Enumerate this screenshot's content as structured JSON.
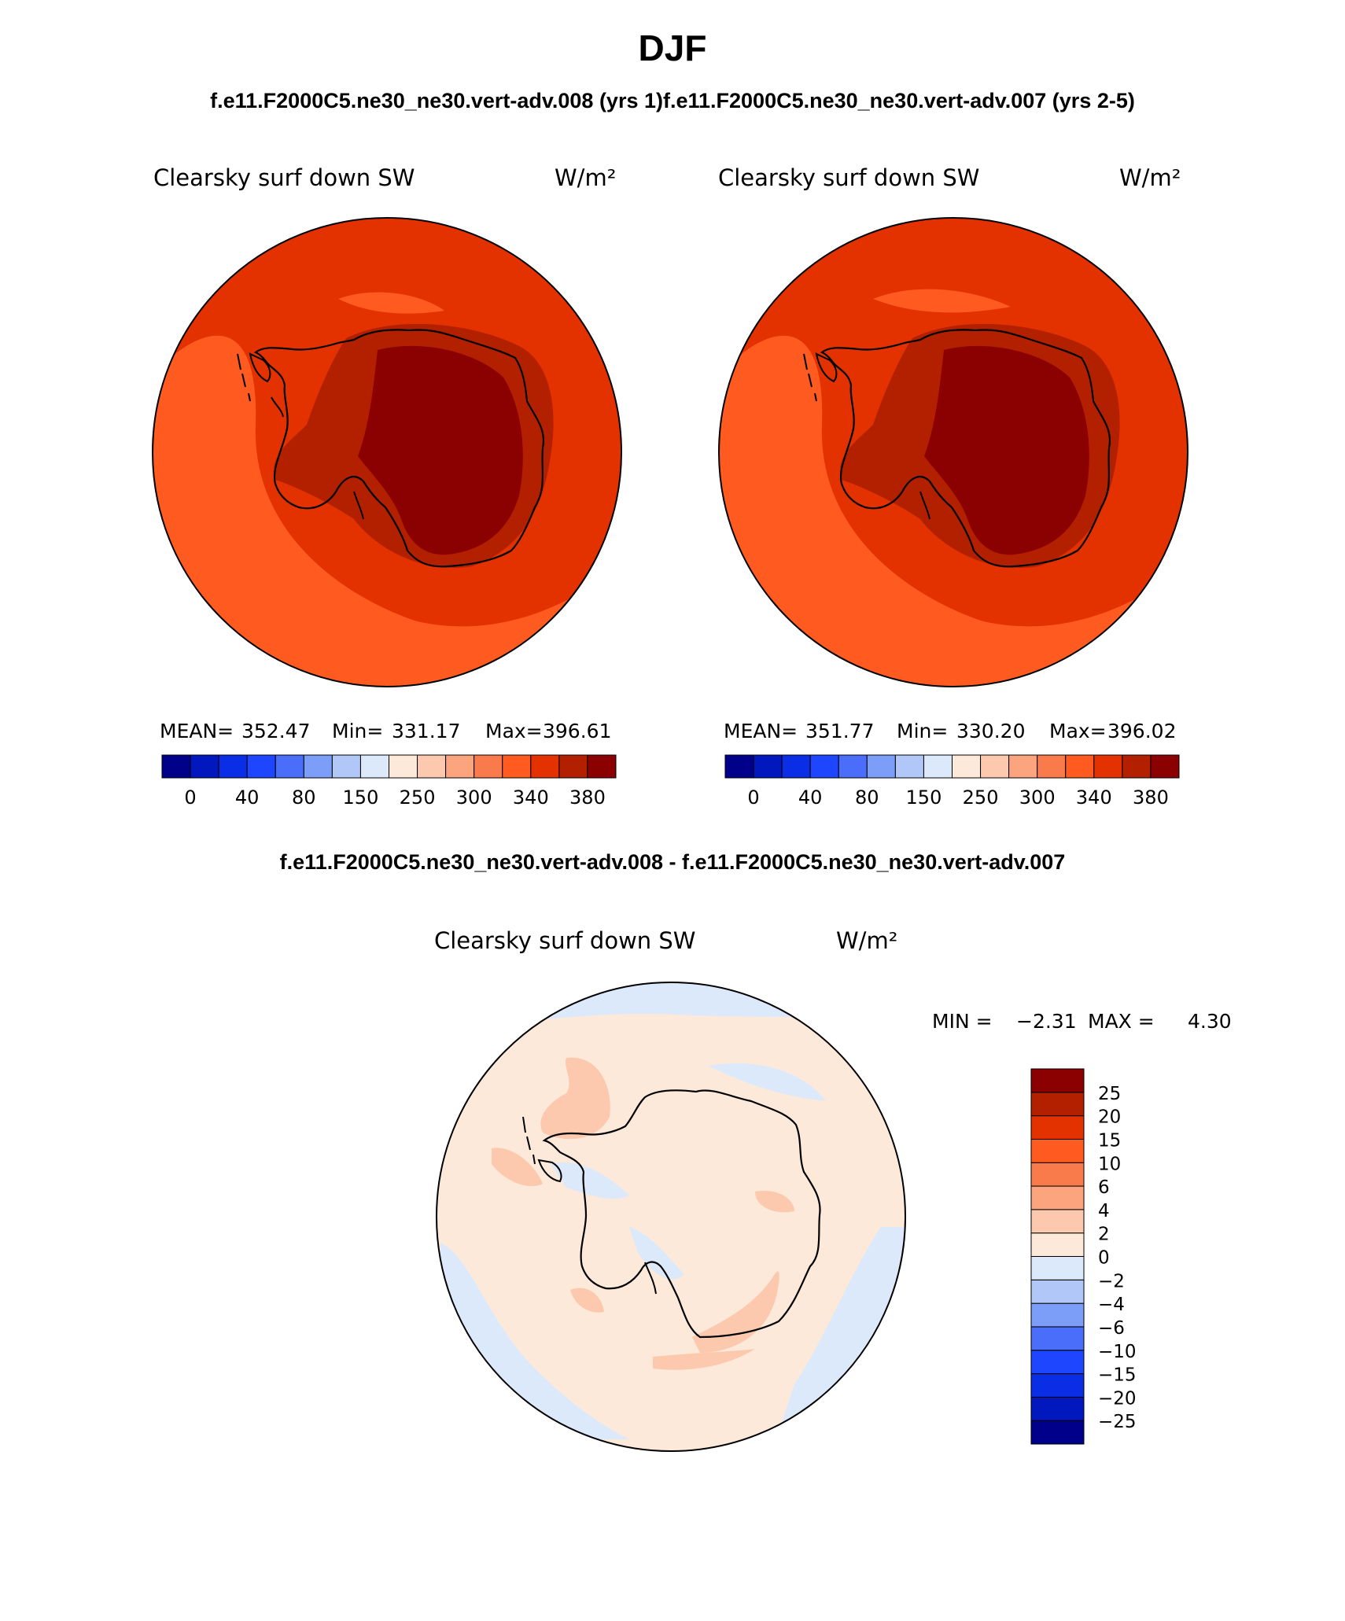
{
  "season": "DJF",
  "case_title": "f.e11.F2000C5.ne30_ne30.vert-adv.008 (yrs 1)f.e11.F2000C5.ne30_ne30.vert-adv.007 (yrs 2-5)",
  "diff_title": "f.e11.F2000C5.ne30_ne30.vert-adv.008 - f.e11.F2000C5.ne30_ne30.vert-adv.007",
  "colors": {
    "seq_scale": [
      "#00008b",
      "#0018be",
      "#0a2ee6",
      "#1e46ff",
      "#4a6dfa",
      "#7c9df8",
      "#b1c7f8",
      "#dce9fb",
      "#fde9da",
      "#fcc9ae",
      "#fba47e",
      "#f97b4c",
      "#ff5a1f",
      "#e33200",
      "#b32000",
      "#8b0000"
    ],
    "diff_scale": [
      "#00008b",
      "#0018be",
      "#0a2ee6",
      "#1e46ff",
      "#4a6dfa",
      "#7c9df8",
      "#b1c7f8",
      "#dce9fb",
      "#fde9da",
      "#fcc9ae",
      "#fba47e",
      "#f97b4c",
      "#ff5a1f",
      "#e33200",
      "#b32000",
      "#8b0000"
    ]
  },
  "chart_data": [
    {
      "type": "polar-stereographic-map",
      "title": "Clearsky surf down SW",
      "units": "W/m²",
      "stats": {
        "mean_label": "MEAN=",
        "mean": "352.47",
        "min_label": "Min=",
        "min": "331.17",
        "max_label": "Max=",
        "max": "396.61"
      },
      "colorbar_ticks": [
        "0",
        "40",
        "80",
        "150",
        "250",
        "300",
        "340",
        "380"
      ]
    },
    {
      "type": "polar-stereographic-map",
      "title": "Clearsky surf down SW",
      "units": "W/m²",
      "stats": {
        "mean_label": "MEAN=",
        "mean": "351.77",
        "min_label": "Min=",
        "min": "330.20",
        "max_label": "Max=",
        "max": "396.02"
      },
      "colorbar_ticks": [
        "0",
        "40",
        "80",
        "150",
        "250",
        "300",
        "340",
        "380"
      ]
    },
    {
      "type": "polar-stereographic-map",
      "title": "Clearsky surf down SW",
      "units": "W/m²",
      "stats": {
        "min_label": "MIN =",
        "min": "−2.31",
        "max_label": "MAX =",
        "max": "4.30"
      },
      "colorbar_levels": [
        "25",
        "20",
        "15",
        "10",
        "6",
        "4",
        "2",
        "0",
        "−2",
        "−4",
        "−6",
        "−10",
        "−15",
        "−20",
        "−25"
      ]
    }
  ]
}
